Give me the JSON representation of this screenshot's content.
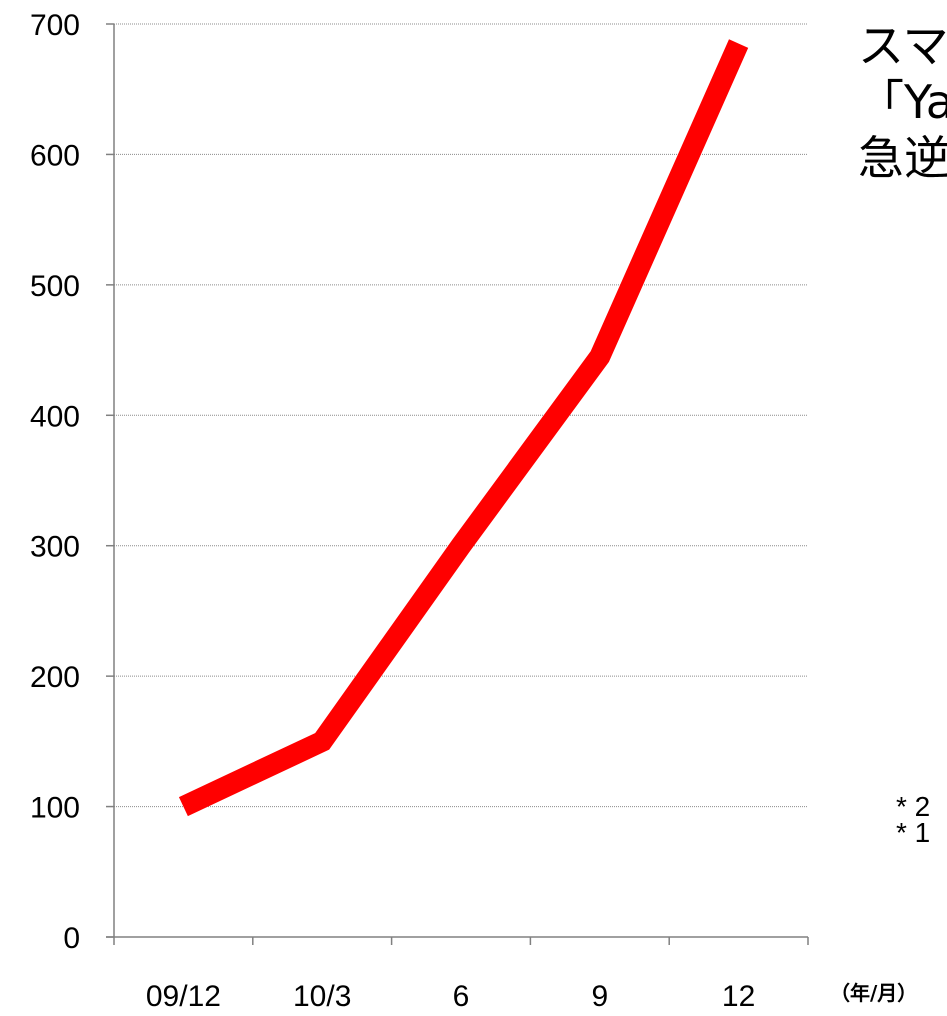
{
  "chart_data": {
    "type": "line",
    "categories": [
      "09/12",
      "10/3",
      "6",
      "9",
      "12"
    ],
    "series": [
      {
        "values": [
          100,
          150,
          300,
          445,
          685
        ],
        "color": "#ff0000"
      }
    ],
    "ylim": [
      0,
      700
    ],
    "yticks": [
      0,
      100,
      200,
      300,
      400,
      500,
      600,
      700
    ],
    "x_unit": "（年/月）",
    "grid": true
  },
  "title_lines": [
    "スマ",
    "「Ya",
    "急逆"
  ],
  "notes": [
    "*  2",
    "*  1"
  ]
}
